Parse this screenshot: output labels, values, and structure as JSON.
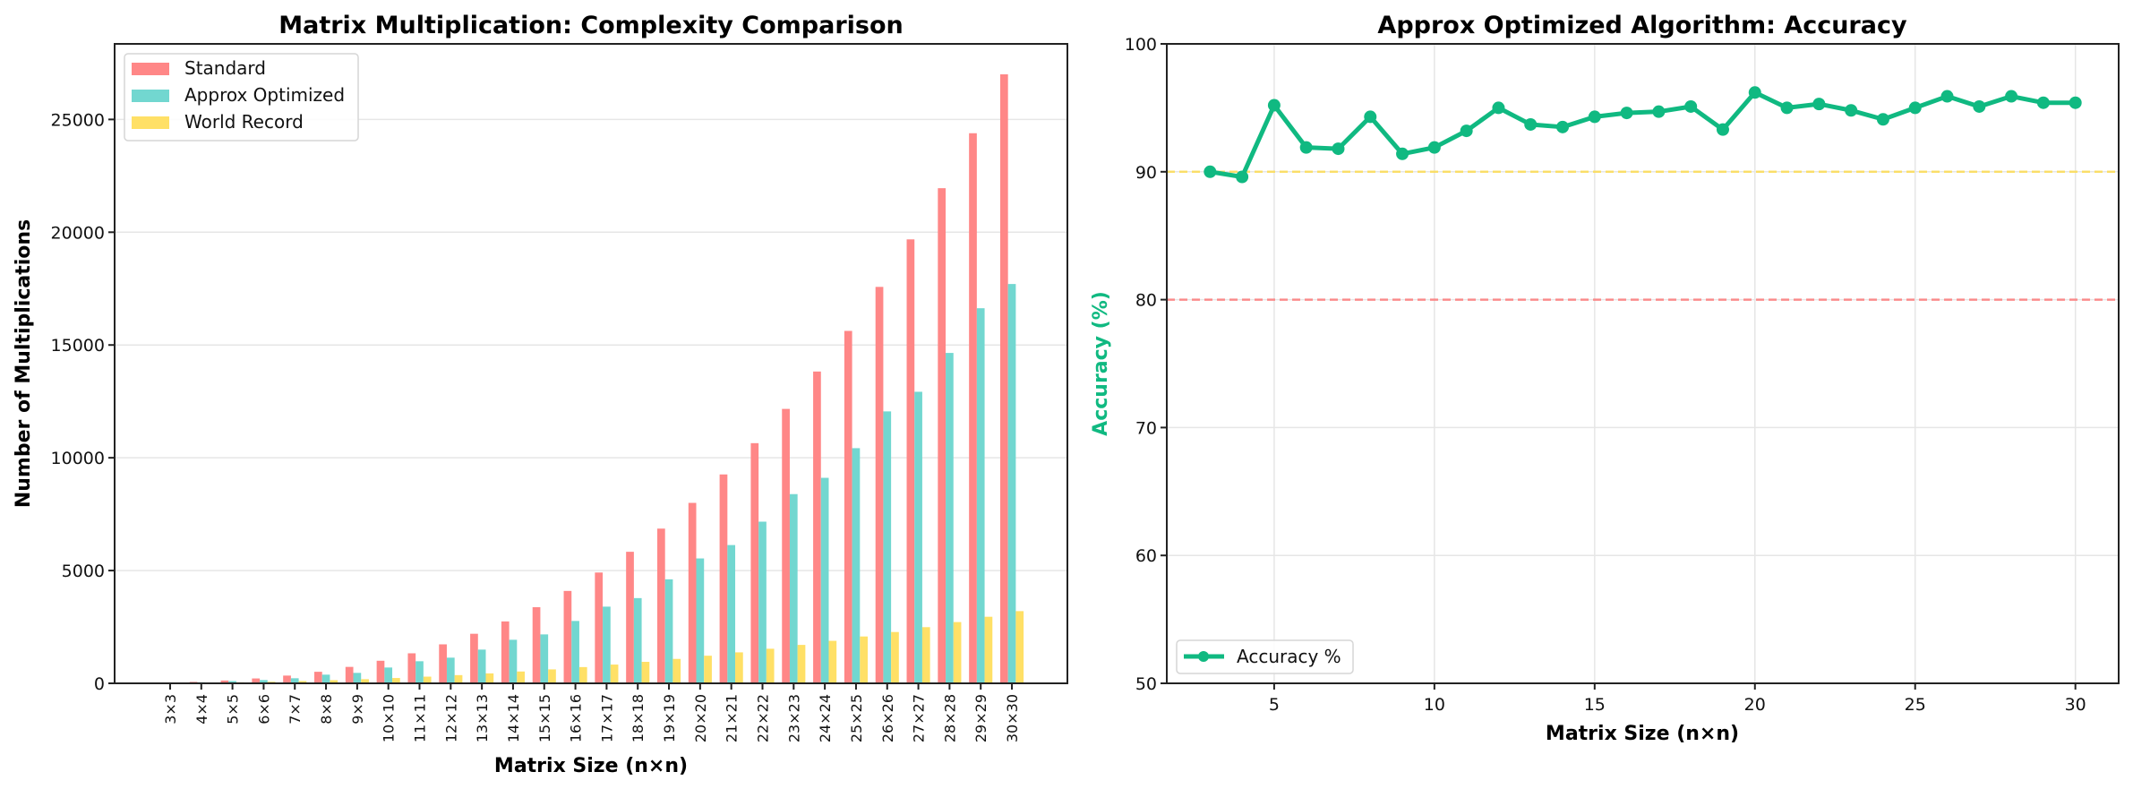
{
  "chart_data": [
    {
      "type": "bar",
      "title": "Matrix Multiplication: Complexity Comparison",
      "xlabel": "Matrix Size (n×n)",
      "ylabel": "Number of Multiplications",
      "ylim": [
        0,
        28350
      ],
      "yticks": [
        0,
        5000,
        10000,
        15000,
        20000,
        25000
      ],
      "grid": "y",
      "legend_position": "top-left",
      "categories": [
        "3×3",
        "4×4",
        "5×5",
        "6×6",
        "7×7",
        "8×8",
        "9×9",
        "10×10",
        "11×11",
        "12×12",
        "13×13",
        "14×14",
        "15×15",
        "16×16",
        "17×17",
        "18×18",
        "19×19",
        "20×20",
        "21×21",
        "22×22",
        "23×23",
        "24×24",
        "25×25",
        "26×26",
        "27×27",
        "28×28",
        "29×29",
        "30×30"
      ],
      "series": [
        {
          "name": "Standard",
          "color": "#ff8787",
          "values": [
            27,
            64,
            125,
            216,
            343,
            512,
            729,
            1000,
            1331,
            1728,
            2197,
            2744,
            3375,
            4096,
            4913,
            5832,
            6859,
            8000,
            9261,
            10648,
            12167,
            13824,
            15625,
            17576,
            19683,
            21952,
            24389,
            27000
          ]
        },
        {
          "name": "Approx Optimized",
          "color": "#72d7d0",
          "values": [
            19,
            45,
            100,
            145,
            225,
            384,
            463,
            701,
            979,
            1138,
            1495,
            1931,
            2169,
            2765,
            3400,
            3778,
            4611,
            5537,
            6130,
            7167,
            8389,
            9111,
            10426,
            12056,
            12926,
            14648,
            16630,
            17704
          ]
        },
        {
          "name": "World Record",
          "color": "#ffe066",
          "values": [
            14,
            27,
            45,
            70,
            101,
            139,
            184,
            236,
            296,
            364,
            440,
            524,
            618,
            720,
            831,
            952,
            1082,
            1224,
            1373,
            1533,
            1703,
            1884,
            2077,
            2275,
            2490,
            2716,
            2951,
            3201
          ]
        }
      ]
    },
    {
      "type": "line",
      "title": "Approx Optimized Algorithm: Accuracy",
      "xlabel": "Matrix Size (n×n)",
      "ylabel": "Accuracy (%)",
      "xlim": [
        1.65,
        31.35
      ],
      "ylim": [
        50,
        100
      ],
      "xticks": [
        5,
        10,
        15,
        20,
        25,
        30
      ],
      "yticks": [
        50,
        60,
        70,
        80,
        90,
        100
      ],
      "grid": "both",
      "legend_position": "bottom-left",
      "accent_color": "#10b981",
      "reference_lines": [
        {
          "y": 90,
          "color": "#ffd93d",
          "style": "dashed"
        },
        {
          "y": 80,
          "color": "#ff6b6b",
          "style": "dashed"
        }
      ],
      "series": [
        {
          "name": "Accuracy %",
          "color": "#10b981",
          "x": [
            3,
            4,
            5,
            6,
            7,
            8,
            9,
            10,
            11,
            12,
            13,
            14,
            15,
            16,
            17,
            18,
            19,
            20,
            21,
            22,
            23,
            24,
            25,
            26,
            27,
            28,
            29,
            30
          ],
          "y": [
            90.0,
            89.6,
            95.2,
            91.9,
            91.8,
            94.3,
            91.4,
            91.9,
            93.2,
            95.0,
            93.7,
            93.5,
            94.3,
            94.6,
            94.7,
            95.1,
            93.3,
            96.2,
            95.0,
            95.3,
            94.8,
            94.1,
            95.0,
            95.9,
            95.1,
            95.9,
            95.4,
            95.4
          ]
        }
      ]
    }
  ]
}
